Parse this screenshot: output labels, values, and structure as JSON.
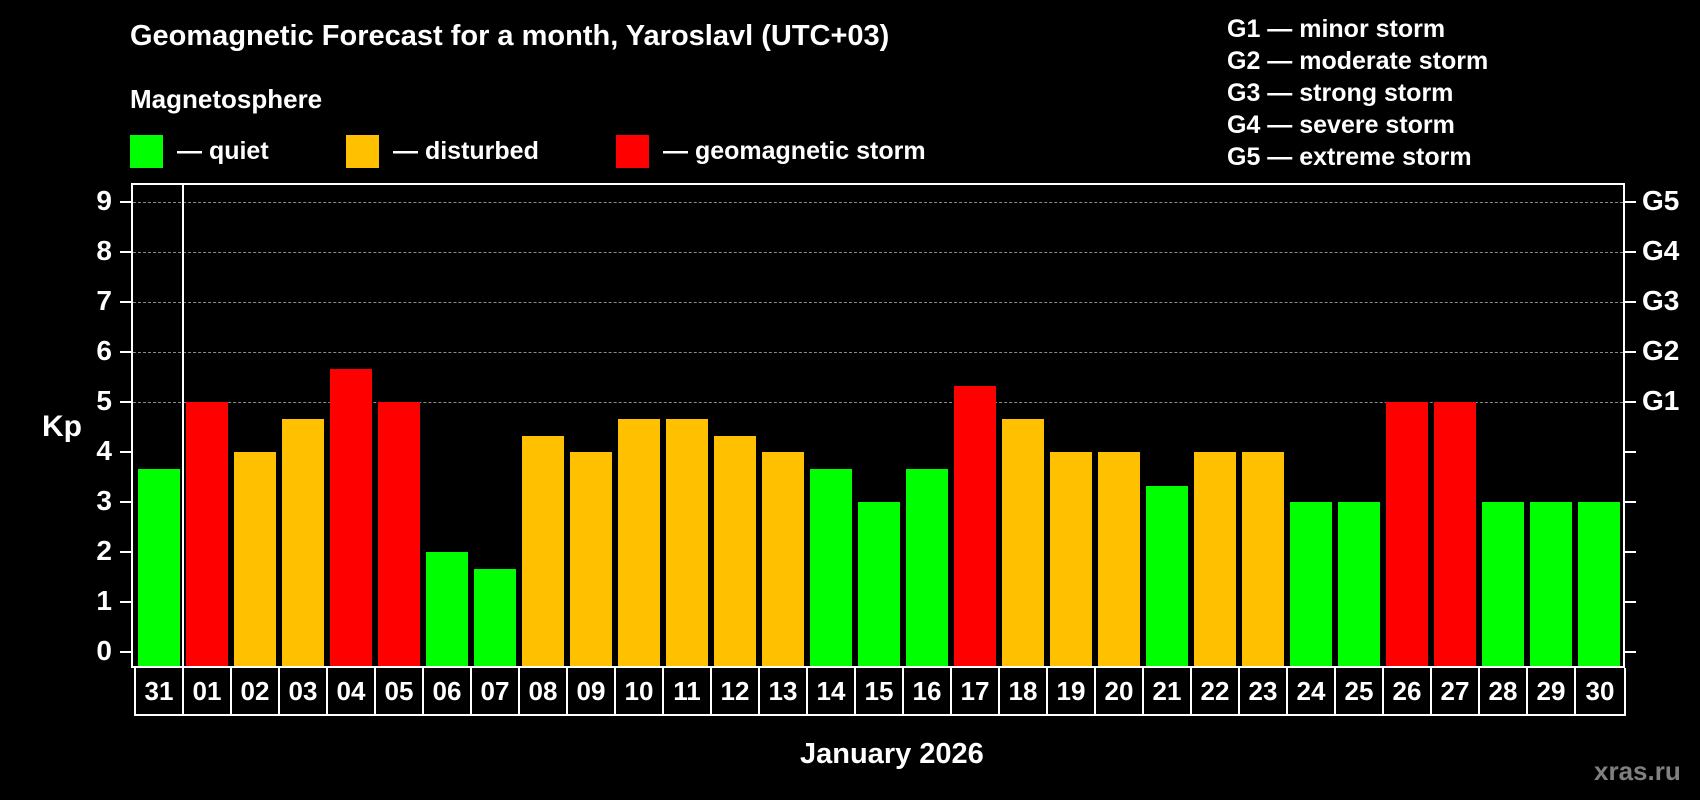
{
  "header": {
    "title": "Geomagnetic Forecast for a month, Yaroslavl (UTC+03)",
    "subtitle": "Magnetosphere"
  },
  "legend": [
    {
      "label": "— quiet",
      "color": "#00ff00"
    },
    {
      "label": "— disturbed",
      "color": "#ffc000"
    },
    {
      "label": "— geomagnetic storm",
      "color": "#ff0000"
    }
  ],
  "g_scale": [
    "G1 — minor storm",
    "G2 — moderate storm",
    "G3 — strong storm",
    "G4 — severe storm",
    "G5 — extreme storm"
  ],
  "axis": {
    "ylabel": "Kp",
    "yticks": [
      "0",
      "1",
      "2",
      "3",
      "4",
      "5",
      "6",
      "7",
      "8",
      "9"
    ],
    "right_labels": [
      {
        "value": 5,
        "label": "G1"
      },
      {
        "value": 6,
        "label": "G2"
      },
      {
        "value": 7,
        "label": "G3"
      },
      {
        "value": 8,
        "label": "G4"
      },
      {
        "value": 9,
        "label": "G5"
      }
    ],
    "xlabel": "January 2026"
  },
  "watermark": "xras.ru",
  "colors": {
    "quiet": "#00ff00",
    "disturbed": "#ffc000",
    "storm": "#ff0000",
    "grid": "#8a8a8a"
  },
  "chart_data": {
    "type": "bar",
    "title": "Geomagnetic Forecast for a month, Yaroslavl (UTC+03)",
    "subtitle": "Magnetosphere",
    "xlabel": "January 2026",
    "ylabel": "Kp",
    "ylim": [
      0,
      9
    ],
    "grid": "dashed horizontal lines at 5,6,7,8,9",
    "secondary_y_labels": {
      "5": "G1",
      "6": "G2",
      "7": "G3",
      "8": "G4",
      "9": "G5"
    },
    "legend": [
      "quiet",
      "disturbed",
      "geomagnetic storm"
    ],
    "categories": [
      "31",
      "01",
      "02",
      "03",
      "04",
      "05",
      "06",
      "07",
      "08",
      "09",
      "10",
      "11",
      "12",
      "13",
      "14",
      "15",
      "16",
      "17",
      "18",
      "19",
      "20",
      "21",
      "22",
      "23",
      "24",
      "25",
      "26",
      "27",
      "28",
      "29",
      "30"
    ],
    "values": [
      3.67,
      5,
      4,
      4.67,
      5.67,
      5,
      2,
      1.67,
      4.33,
      4,
      4.67,
      4.67,
      4.33,
      4,
      3.67,
      3,
      3.67,
      5.33,
      4.67,
      4,
      4,
      3.33,
      4,
      4,
      3,
      3,
      5,
      5,
      3,
      3,
      3
    ],
    "status": [
      "quiet",
      "storm",
      "disturbed",
      "disturbed",
      "storm",
      "storm",
      "quiet",
      "quiet",
      "disturbed",
      "disturbed",
      "disturbed",
      "disturbed",
      "disturbed",
      "disturbed",
      "quiet",
      "quiet",
      "quiet",
      "storm",
      "disturbed",
      "disturbed",
      "disturbed",
      "quiet",
      "disturbed",
      "disturbed",
      "quiet",
      "quiet",
      "storm",
      "storm",
      "quiet",
      "quiet",
      "quiet"
    ]
  }
}
